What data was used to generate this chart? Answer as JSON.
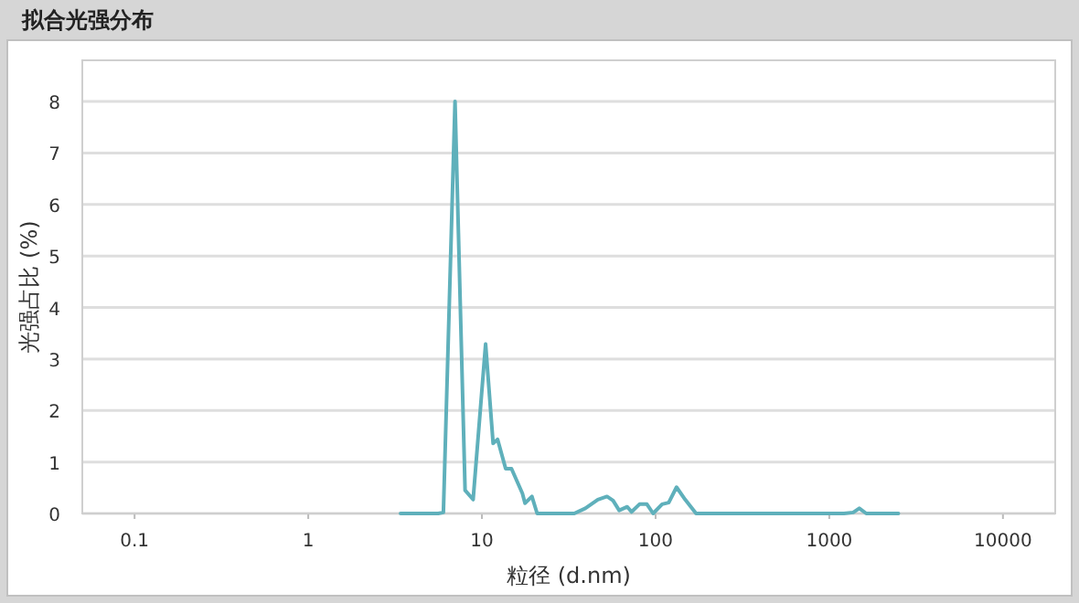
{
  "chart_data": {
    "type": "line",
    "title": "拟合光强分布",
    "xlabel": "粒径 (d.nm)",
    "ylabel": "光强占比 (%)",
    "log": "x",
    "xlim": [
      0.05,
      20000
    ],
    "xticks": [
      0.1,
      1,
      10,
      100,
      1000,
      10000
    ],
    "ylim": [
      0,
      8.8
    ],
    "yticks": [
      0,
      1,
      2,
      3,
      4,
      5,
      6,
      7,
      8
    ],
    "grid": "y",
    "series": [
      {
        "color": "#5fb0bb",
        "x": [
          3.4,
          5.6,
          6.0,
          7.0,
          8.0,
          8.9,
          10.5,
          11.6,
          12.3,
          13.7,
          14.8,
          17.1,
          17.7,
          19.4,
          20.8,
          34,
          39.4,
          46.5,
          52.5,
          56.9,
          61.7,
          68.7,
          72.7,
          80.8,
          89.1,
          96.8,
          109,
          119,
          132,
          148,
          171,
          1216,
          1374,
          1489,
          1633,
          2500
        ],
        "values": [
          0,
          0,
          0.02,
          8.0,
          0.45,
          0.27,
          3.29,
          1.36,
          1.44,
          0.87,
          0.87,
          0.39,
          0.2,
          0.33,
          0,
          0,
          0.1,
          0.27,
          0.33,
          0.25,
          0.06,
          0.13,
          0.03,
          0.18,
          0.18,
          0,
          0.18,
          0.21,
          0.51,
          0.27,
          0,
          0,
          0.02,
          0.1,
          0,
          0
        ]
      }
    ]
  }
}
